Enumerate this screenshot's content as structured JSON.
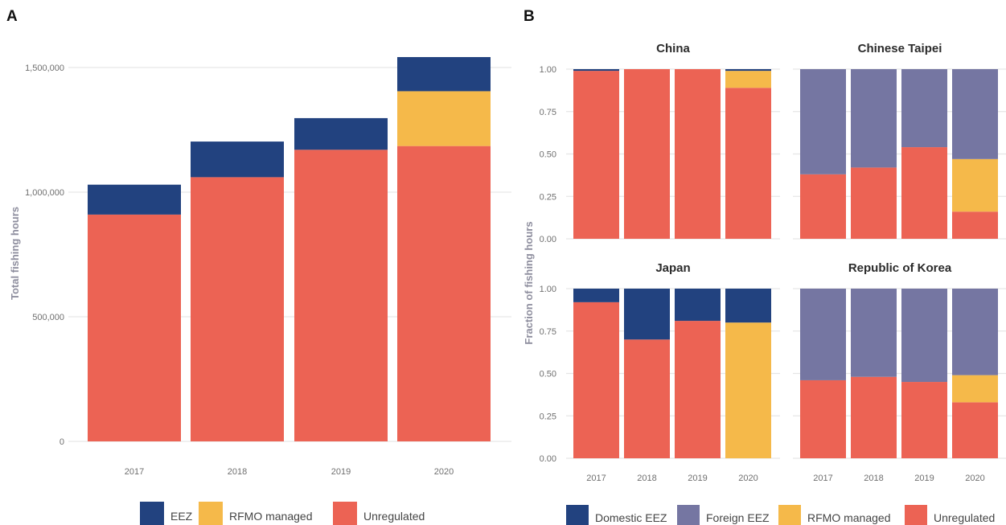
{
  "colors": {
    "Unregulated": "#ec6354",
    "EEZ": "#22427f",
    "Domestic EEZ": "#22427f",
    "Foreign EEZ": "#7576a2",
    "RFMO managed": "#f5b94a"
  },
  "chart_data": [
    {
      "type": "bar",
      "stacked": true,
      "panel_label": "A",
      "ylabel": "Total fishing hours",
      "categories": [
        "2017",
        "2018",
        "2019",
        "2020"
      ],
      "ylim": [
        0,
        1550000
      ],
      "yticks": [
        0,
        500000,
        1000000,
        1500000
      ],
      "ytick_labels": [
        "0",
        "500,000",
        "1,000,000",
        "1,500,000"
      ],
      "grid": true,
      "legend": "bottom",
      "series": [
        {
          "name": "Unregulated",
          "values": [
            910000,
            1060000,
            1170000,
            1185000
          ]
        },
        {
          "name": "RFMO managed",
          "values": [
            0,
            0,
            0,
            220000
          ]
        },
        {
          "name": "EEZ",
          "values": [
            120000,
            143000,
            127000,
            137000
          ]
        }
      ]
    },
    {
      "type": "bar",
      "stacked": true,
      "faceted": true,
      "panel_label": "B",
      "ylabel": "Fraction of fishing hours",
      "categories": [
        "2017",
        "2018",
        "2019",
        "2020"
      ],
      "ylim": [
        0,
        1
      ],
      "yticks": [
        0,
        0.25,
        0.5,
        0.75,
        1
      ],
      "ytick_labels": [
        "0.00",
        "0.25",
        "0.50",
        "0.75",
        "1.00"
      ],
      "grid": true,
      "legend": "bottom",
      "legend_entries": [
        "Domestic EEZ",
        "Foreign EEZ",
        "RFMO managed",
        "Unregulated"
      ],
      "facets": [
        {
          "title": "China",
          "series": [
            {
              "name": "Unregulated",
              "values": [
                0.99,
                1.0,
                1.0,
                0.89
              ]
            },
            {
              "name": "RFMO managed",
              "values": [
                0,
                0,
                0,
                0.1
              ]
            },
            {
              "name": "Foreign EEZ",
              "values": [
                0,
                0,
                0,
                0
              ]
            },
            {
              "name": "Domestic EEZ",
              "values": [
                0.01,
                0,
                0,
                0.01
              ]
            }
          ]
        },
        {
          "title": "Chinese Taipei",
          "series": [
            {
              "name": "Unregulated",
              "values": [
                0.38,
                0.42,
                0.54,
                0.16
              ]
            },
            {
              "name": "RFMO managed",
              "values": [
                0,
                0,
                0,
                0.31
              ]
            },
            {
              "name": "Foreign EEZ",
              "values": [
                0.62,
                0.58,
                0.46,
                0.53
              ]
            },
            {
              "name": "Domestic EEZ",
              "values": [
                0,
                0,
                0,
                0
              ]
            }
          ]
        },
        {
          "title": "Japan",
          "series": [
            {
              "name": "Unregulated",
              "values": [
                0.92,
                0.7,
                0.81,
                0
              ]
            },
            {
              "name": "RFMO managed",
              "values": [
                0,
                0,
                0,
                0.8
              ]
            },
            {
              "name": "Foreign EEZ",
              "values": [
                0,
                0,
                0,
                0
              ]
            },
            {
              "name": "Domestic EEZ",
              "values": [
                0.08,
                0.3,
                0.19,
                0.2
              ]
            }
          ]
        },
        {
          "title": "Republic of Korea",
          "series": [
            {
              "name": "Unregulated",
              "values": [
                0.46,
                0.48,
                0.45,
                0.33
              ]
            },
            {
              "name": "RFMO managed",
              "values": [
                0,
                0,
                0,
                0.16
              ]
            },
            {
              "name": "Foreign EEZ",
              "values": [
                0.54,
                0.52,
                0.55,
                0.51
              ]
            },
            {
              "name": "Domestic EEZ",
              "values": [
                0,
                0,
                0,
                0
              ]
            }
          ]
        }
      ]
    }
  ]
}
